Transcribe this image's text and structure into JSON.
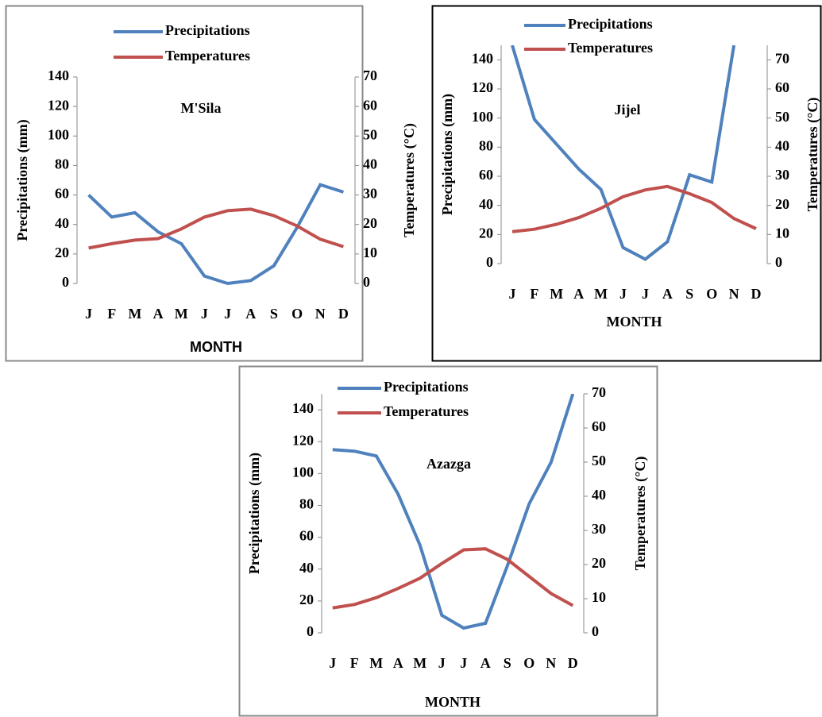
{
  "chart_data": [
    {
      "type": "line",
      "title": "M'Sila",
      "x_label": "MONTH",
      "y_label": "Precipitations (mm)",
      "y2_label": "Temperatures (°C)",
      "categories": [
        "J",
        "F",
        "M",
        "A",
        "M",
        "J",
        "J",
        "A",
        "S",
        "O",
        "N",
        "D"
      ],
      "series": [
        {
          "name": "Precipitations",
          "color": "#4f81bd",
          "values": [
            60,
            45,
            48,
            35,
            27,
            5,
            0,
            2,
            12,
            38,
            67,
            62
          ]
        },
        {
          "name": "Temperatures",
          "color": "#c0504d",
          "axis": "y2",
          "values": [
            12,
            13.5,
            14.7,
            15.2,
            18.5,
            22.5,
            24.7,
            25.2,
            23,
            19.5,
            15,
            12.5
          ]
        }
      ],
      "ylim": [
        0,
        140
      ],
      "yticks": [
        0,
        20,
        40,
        60,
        80,
        100,
        120,
        140
      ],
      "y2lim": [
        0,
        70
      ],
      "y2ticks": [
        0,
        10,
        20,
        30,
        40,
        50,
        60,
        70
      ]
    },
    {
      "type": "line",
      "title": "Jijel",
      "x_label": "MONTH",
      "y_label": "Precipitations (mm)",
      "y2_label": "Temperatures (°C)",
      "categories": [
        "J",
        "F",
        "M",
        "A",
        "M",
        "J",
        "J",
        "A",
        "S",
        "O",
        "N",
        "D"
      ],
      "series": [
        {
          "name": "Precipitations",
          "color": "#4f81bd",
          "values": [
            150,
            99,
            82,
            65,
            51,
            11,
            3,
            15,
            61,
            56,
            150,
            null
          ]
        },
        {
          "name": "Temperatures",
          "color": "#c0504d",
          "axis": "y2",
          "values": [
            11,
            11.8,
            13.5,
            15.8,
            19,
            23,
            25.3,
            26.5,
            24,
            21,
            15.5,
            12
          ]
        }
      ],
      "ylim": [
        0,
        150
      ],
      "yticks": [
        0,
        20,
        40,
        60,
        80,
        100,
        120,
        140
      ],
      "y2lim": [
        0,
        75
      ],
      "y2ticks": [
        0,
        10,
        20,
        30,
        40,
        50,
        60,
        70
      ]
    },
    {
      "type": "line",
      "title": "Azazga",
      "x_label": "MONTH",
      "y_label": "Precipitations (mm)",
      "y2_label": "Temperatures (°C)",
      "categories": [
        "J",
        "F",
        "M",
        "A",
        "M",
        "J",
        "J",
        "A",
        "S",
        "O",
        "N",
        "D"
      ],
      "series": [
        {
          "name": "Precipitations",
          "color": "#4f81bd",
          "values": [
            115,
            114,
            111,
            87,
            55,
            11,
            3,
            6,
            42,
            81,
            107,
            150
          ]
        },
        {
          "name": "Temperatures",
          "color": "#c0504d",
          "axis": "y2",
          "values": [
            7.3,
            8.3,
            10.3,
            13,
            16,
            20.3,
            24.3,
            24.6,
            21.5,
            16.5,
            11.5,
            8
          ]
        }
      ],
      "ylim": [
        0,
        150
      ],
      "yticks": [
        0,
        20,
        40,
        60,
        80,
        100,
        120,
        140
      ],
      "y2lim": [
        0,
        70
      ],
      "y2ticks": [
        0,
        10,
        20,
        30,
        40,
        50,
        60,
        70
      ]
    }
  ]
}
